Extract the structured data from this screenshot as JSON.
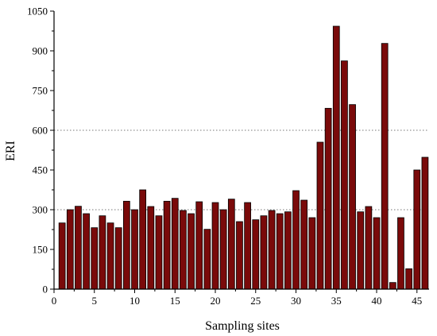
{
  "chart_data": {
    "type": "bar",
    "xlabel": "Sampling sites",
    "ylabel": "ERI",
    "xlim": [
      0,
      46.5
    ],
    "ylim": [
      0,
      1050
    ],
    "xticks": [
      0,
      5,
      10,
      15,
      20,
      25,
      30,
      35,
      40,
      45
    ],
    "yticks": [
      0,
      150,
      300,
      450,
      600,
      750,
      900,
      1050
    ],
    "reference_lines": [
      300,
      600
    ],
    "grid": "dotted horizontal reference lines at 300 and 600",
    "bar_color": "#7a0a0a",
    "bar_edge_color": "#000000",
    "x": [
      1,
      2,
      3,
      4,
      5,
      6,
      7,
      8,
      9,
      10,
      11,
      12,
      13,
      14,
      15,
      16,
      17,
      18,
      19,
      20,
      21,
      22,
      23,
      24,
      25,
      26,
      27,
      28,
      29,
      30,
      31,
      32,
      33,
      34,
      35,
      36,
      37,
      38,
      39,
      40,
      41,
      42,
      43,
      44,
      45,
      46
    ],
    "values": [
      250,
      300,
      313,
      285,
      232,
      277,
      250,
      232,
      332,
      300,
      375,
      312,
      277,
      332,
      343,
      297,
      285,
      330,
      226,
      327,
      300,
      340,
      255,
      327,
      262,
      277,
      297,
      285,
      292,
      372,
      336,
      270,
      555,
      683,
      993,
      862,
      697,
      292,
      312,
      270,
      928,
      25,
      270,
      77,
      450,
      498
    ]
  }
}
